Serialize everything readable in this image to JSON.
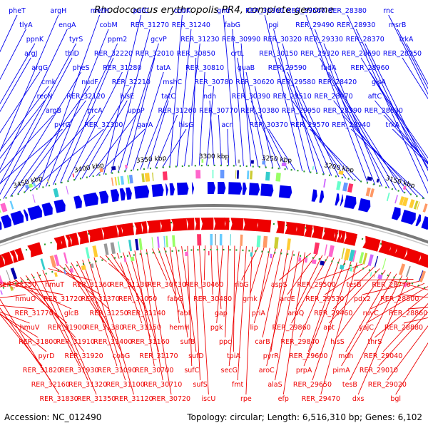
{
  "title": "Rhodococcus erythropolis PR4, complete genome",
  "accession_text": "Accession: NC_012490",
  "topology_text": "Topology: circular; Length: 6,516,310 bp; Genes: 6,102",
  "colors": {
    "forward_strand": "#0000ee",
    "reverse_strand": "#ee0000",
    "backbone": "#7a7a7a",
    "ticks": "#2a9a2a",
    "tick_label": "#000000"
  },
  "kbp_ticks": [
    "3550 kbp",
    "3500 kbp",
    "3450 kbp",
    "3400 kbp",
    "3350 kbp",
    "3300 kbp",
    "3250 kbp",
    "3200 kbp",
    "3150 kbp",
    "3100 kbp",
    "3050 kbp"
  ],
  "top_gene_labels": [
    "pheT",
    "tlyA",
    "ppnK",
    "argJ",
    "argG",
    "cmk",
    "recN",
    "argB",
    "pyrG",
    "argH",
    "engA",
    "tyrS",
    "thiD",
    "pheS",
    "nudF",
    "RER_32120",
    "prcA",
    "RER_31300",
    "metH",
    "cobM",
    "ppm2",
    "RER_32220",
    "RER_31280",
    "RER_32210",
    "hisE",
    "uppP",
    "garA",
    "pafC",
    "RER_31270",
    "gcvP",
    "RER_32010",
    "tatA",
    "mshC",
    "tatC",
    "RER_31260",
    "hisG",
    "cobK",
    "RER_31240",
    "RER_31230",
    "RER_30850",
    "RER_30810",
    "RER_30780",
    "ndh",
    "RER_30770",
    "acn",
    "gnd",
    "fabG",
    "RER_30990",
    "crtL",
    "guaB",
    "RER_30620",
    "RER_30390",
    "RER_30380",
    "RER_30370",
    "RER_30360",
    "pgi",
    "RER_30320",
    "RER_30150",
    "RER_29590",
    "RER_29580",
    "RER_29510",
    "RER_29950",
    "RER_29570",
    "RER_29560",
    "RER_29490",
    "RER_29330",
    "RER_29320",
    "fadA",
    "RER_28420",
    "RER_28970",
    "RER_28390",
    "RER_28940",
    "RER_28380",
    "RER_28930",
    "RER_28370",
    "RER_28690",
    "RER_28960",
    "glsA",
    "aftC",
    "RER_28830",
    "trkA",
    "rnc",
    "msrB",
    "trkA",
    "RER_28950"
  ],
  "bottom_gene_labels": [
    "RER_32150",
    "hmuO",
    "RER_31770",
    "hmuV",
    "RER_31800",
    "pyrD",
    "RER_31820",
    "RER_32160",
    "RER_31830",
    "hmuT",
    "RER_31720",
    "glcB",
    "RER_31900",
    "RER_31910",
    "RER_31920",
    "RER_31930",
    "RER_31320",
    "RER_31350",
    "RER_31360",
    "RER_31370",
    "RER_31250",
    "RER_31380",
    "RER_31400",
    "cobG",
    "RER_31090",
    "RER_31100",
    "RER_31120",
    "RER_31130",
    "RER_31050",
    "RER_31140",
    "RER_31150",
    "RER_31160",
    "RER_31170",
    "RER_30700",
    "RER_30710",
    "RER_30720",
    "RER_30730",
    "fabG",
    "fabI",
    "hemH",
    "sufB",
    "sufD",
    "sufC",
    "sufS",
    "iscU",
    "RER_30460",
    "RER_30480",
    "gap",
    "pgk",
    "ppc",
    "tpiA",
    "secG",
    "fmt",
    "rpe",
    "ribG",
    "gmk",
    "priA",
    "lip",
    "carB",
    "pyrR",
    "aroC",
    "alaS",
    "efp",
    "aspS",
    "aroE",
    "aroQ",
    "RER_29860",
    "RER_29840",
    "RER_29600",
    "prpA",
    "RER_29650",
    "RER_29470",
    "RER_29500",
    "RER_29530",
    "RER_29460",
    "apt",
    "hisS",
    "mdh",
    "pimA",
    "tesB",
    "dxs",
    "tesB",
    "pdx2",
    "ruvC",
    "yajC",
    "thrS",
    "RER_29040",
    "RER_29010",
    "RER_29020",
    "bgl",
    "RER_28770",
    "RER_28800",
    "RER_28860",
    "RER_28880"
  ]
}
